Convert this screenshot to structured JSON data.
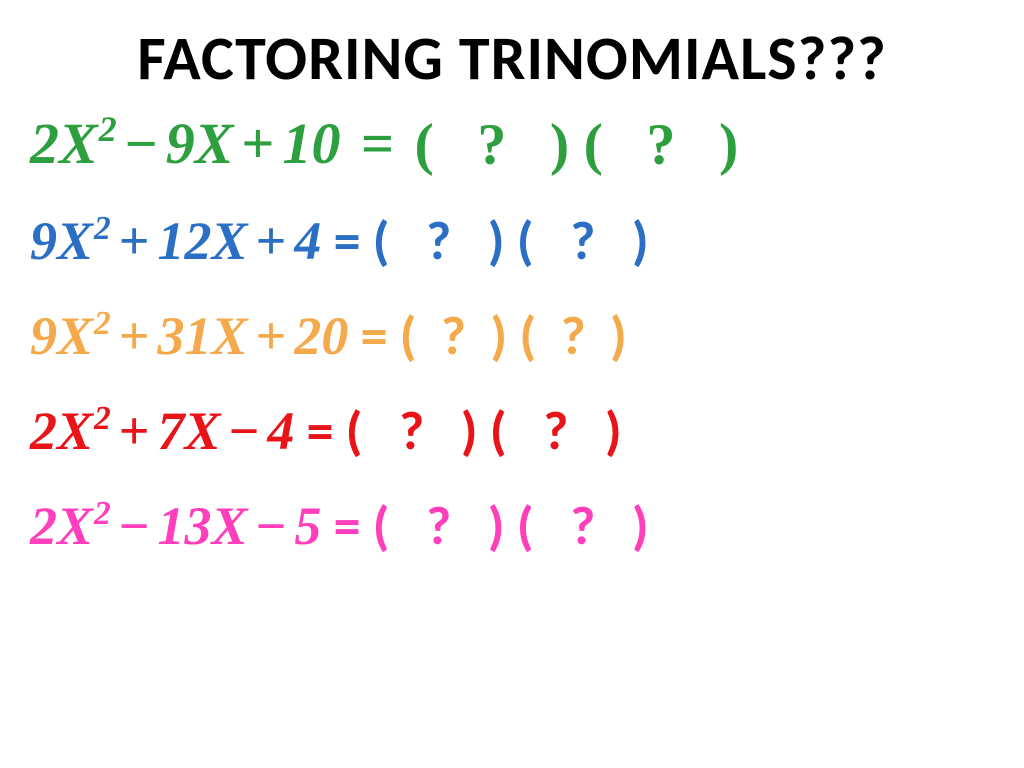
{
  "title": "FACTORING TRINOMIALS???",
  "title_color": "#000000",
  "title_fontsize": 62,
  "background_color": "#ffffff",
  "equations": [
    {
      "a": "2",
      "b": "9",
      "c": "10",
      "op1": "−",
      "op2": "+",
      "color": "#2e9f3e",
      "eq_style": "serif",
      "rhs": "(   ?   ) (   ?   )",
      "fontsize": 58
    },
    {
      "a": "9",
      "b": "12",
      "c": "4",
      "op1": "+",
      "op2": "+",
      "color": "#2b6fc4",
      "eq_style": "sans",
      "rhs": "(   ?   ) (   ?   )",
      "fontsize": 54
    },
    {
      "a": "9",
      "b": "31",
      "c": "20",
      "op1": "+",
      "op2": "+",
      "color": "#f4a94a",
      "eq_style": "sans",
      "rhs": "(  ?  ) (  ?  )",
      "fontsize": 54
    },
    {
      "a": "2",
      "b": "7",
      "c": "4",
      "op1": "+",
      "op2": "−",
      "color": "#e8141a",
      "eq_style": "sans",
      "rhs": "(   ?   ) (   ?   )",
      "fontsize": 54
    },
    {
      "a": "2",
      "b": "13",
      "c": "5",
      "op1": "−",
      "op2": "−",
      "color": "#ff3fbb",
      "eq_style": "sans",
      "rhs": "(   ?   ) (   ?   )",
      "fontsize": 54
    }
  ]
}
